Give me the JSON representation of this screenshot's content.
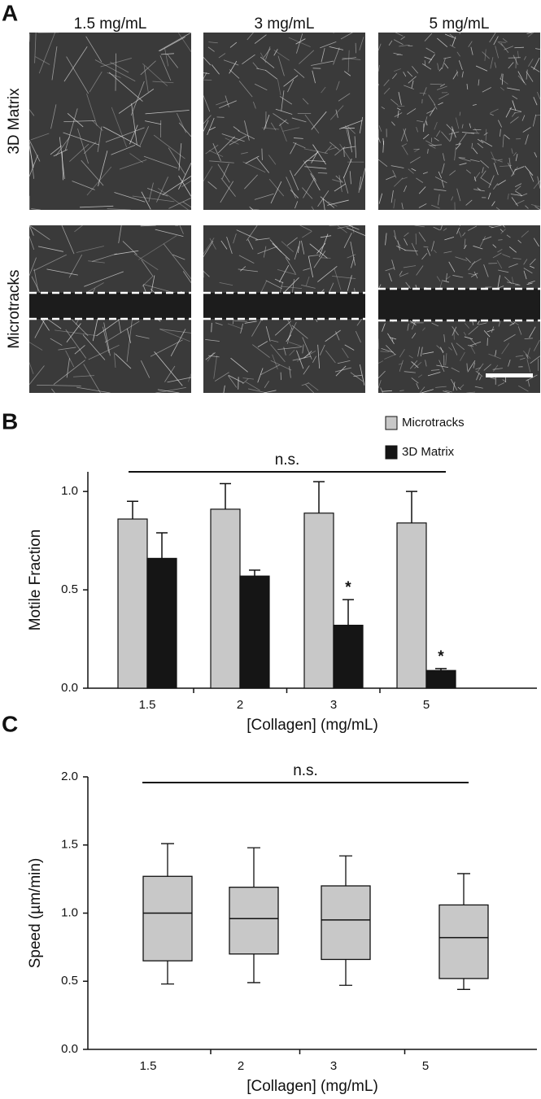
{
  "panel_a": {
    "label": "A",
    "columns": [
      "1.5 mg/mL",
      "3 mg/mL",
      "5 mg/mL"
    ],
    "rows": [
      "3D Matrix",
      "Microtracks"
    ]
  },
  "chart_data": [
    {
      "type": "bar",
      "panel": "B",
      "ylabel": "Motile Fraction",
      "xlabel": "[Collagen] (mg/mL)",
      "categories": [
        "1.5",
        "2",
        "3",
        "5"
      ],
      "series": [
        {
          "name": "Microtracks",
          "color": "#c8c8c8",
          "values": [
            0.86,
            0.91,
            0.89,
            0.84
          ],
          "errors": [
            0.09,
            0.13,
            0.16,
            0.16
          ]
        },
        {
          "name": "3D Matrix",
          "color": "#151515",
          "values": [
            0.66,
            0.57,
            0.32,
            0.09
          ],
          "errors": [
            0.13,
            0.03,
            0.13,
            0.01
          ]
        }
      ],
      "annotations": [
        "n.s.",
        "*",
        "*"
      ],
      "ylim": [
        0,
        1.1
      ],
      "yticks": [
        {
          "value": 0,
          "label": "0.0"
        },
        {
          "value": 0.5,
          "label": "0.5"
        },
        {
          "value": 1,
          "label": "1.0"
        }
      ],
      "legend": "top-right"
    },
    {
      "type": "box",
      "panel": "C",
      "ylabel": "Speed (µm/min)",
      "xlabel": "[Collagen] (mg/mL)",
      "categories": [
        "1.5",
        "2",
        "3",
        "5"
      ],
      "color": "#c8c8c8",
      "boxes": [
        {
          "whislo": 0.48,
          "q1": 0.65,
          "med": 1.0,
          "q3": 1.27,
          "whishi": 1.51
        },
        {
          "whislo": 0.49,
          "q1": 0.7,
          "med": 0.96,
          "q3": 1.19,
          "whishi": 1.48
        },
        {
          "whislo": 0.47,
          "q1": 0.66,
          "med": 0.95,
          "q3": 1.2,
          "whishi": 1.42
        },
        {
          "whislo": 0.44,
          "q1": 0.52,
          "med": 0.82,
          "q3": 1.06,
          "whishi": 1.29
        }
      ],
      "annotations": [
        "n.s."
      ],
      "ylim": [
        0,
        2
      ],
      "yticks": [
        {
          "value": 0,
          "label": "0.0"
        },
        {
          "value": 0.5,
          "label": "0.5"
        },
        {
          "value": 1,
          "label": "1.0"
        },
        {
          "value": 1.5,
          "label": "1.5"
        },
        {
          "value": 2,
          "label": "2.0"
        }
      ]
    }
  ]
}
